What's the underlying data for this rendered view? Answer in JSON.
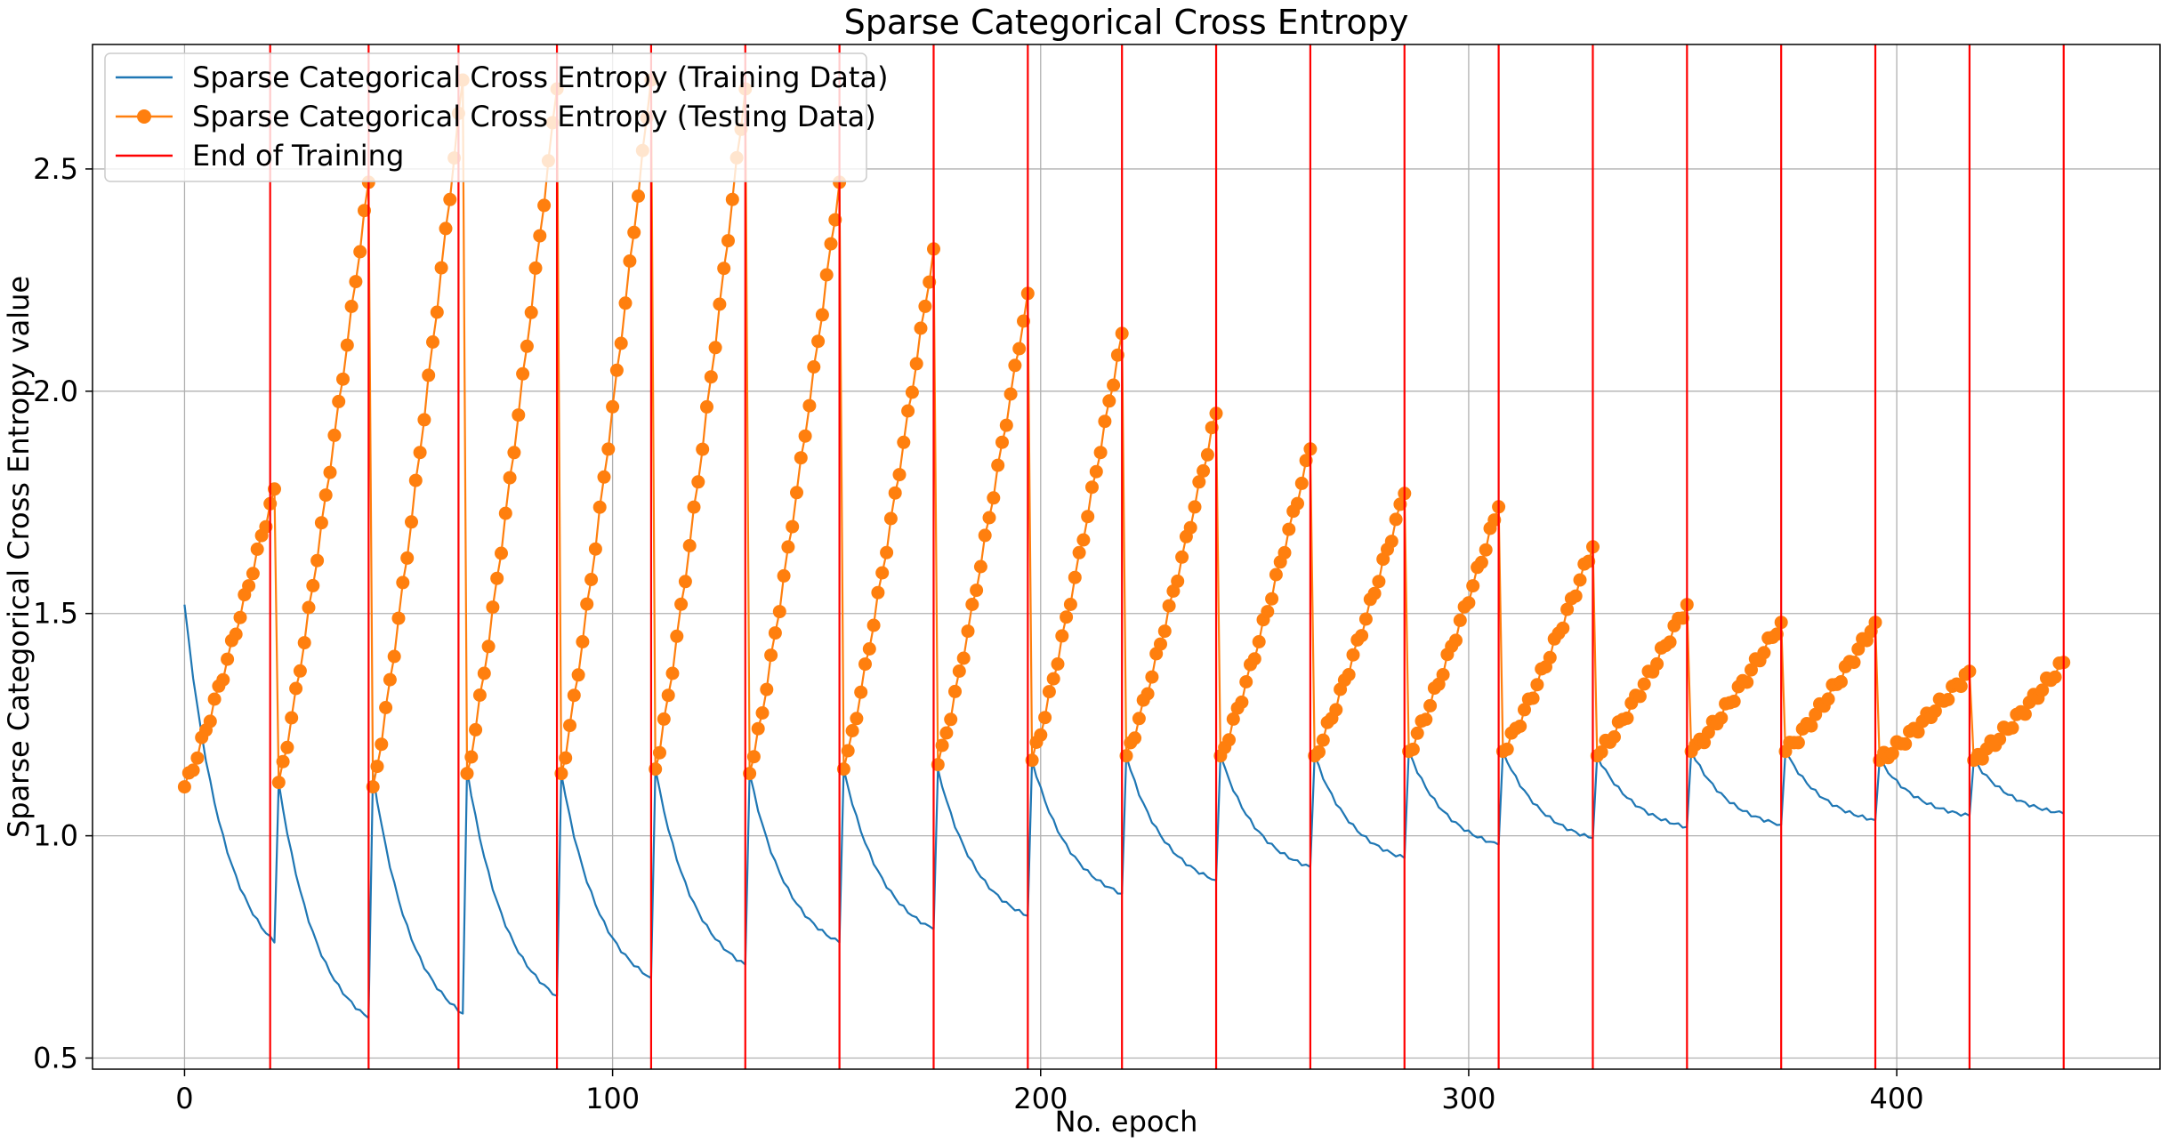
{
  "chart_data": {
    "type": "line",
    "title": "Sparse Categorical Cross Entropy",
    "xlabel": "No. epoch",
    "ylabel": "Sparse Categorical Cross Entropy value",
    "xlim": [
      -21.5,
      461.5
    ],
    "ylim": [
      0.475,
      2.78
    ],
    "xticks": [
      0,
      100,
      200,
      300,
      400
    ],
    "xtick_labels": [
      "0",
      "100",
      "200",
      "300",
      "400"
    ],
    "yticks": [
      0.5,
      1.0,
      1.5,
      2.0,
      2.5
    ],
    "ytick_labels": [
      "0.5",
      "1.0",
      "1.5",
      "2.0",
      "2.5"
    ],
    "grid": true,
    "legend_position": "top-left",
    "cycle_length": 22,
    "num_cycles": 20,
    "series": [
      {
        "name": "Sparse Categorical Cross Entropy (Training Data)",
        "color": "#1f77b4",
        "marker": "none",
        "cycles": [
          {
            "start": 1.52,
            "end": 0.76
          },
          {
            "start": 1.12,
            "end": 0.59
          },
          {
            "start": 1.14,
            "end": 0.6
          },
          {
            "start": 1.15,
            "end": 0.64
          },
          {
            "start": 1.14,
            "end": 0.68
          },
          {
            "start": 1.15,
            "end": 0.71
          },
          {
            "start": 1.14,
            "end": 0.76
          },
          {
            "start": 1.15,
            "end": 0.79
          },
          {
            "start": 1.15,
            "end": 0.82
          },
          {
            "start": 1.17,
            "end": 0.87
          },
          {
            "start": 1.18,
            "end": 0.9
          },
          {
            "start": 1.18,
            "end": 0.93
          },
          {
            "start": 1.18,
            "end": 0.95
          },
          {
            "start": 1.19,
            "end": 0.98
          },
          {
            "start": 1.19,
            "end": 0.995
          },
          {
            "start": 1.18,
            "end": 1.02
          },
          {
            "start": 1.19,
            "end": 1.025
          },
          {
            "start": 1.19,
            "end": 1.035
          },
          {
            "start": 1.17,
            "end": 1.045
          },
          {
            "start": 1.17,
            "end": 1.05
          }
        ]
      },
      {
        "name": "Sparse Categorical Cross Entropy (Testing Data)",
        "color": "#ff7f0e",
        "marker": "circle",
        "cycles": [
          {
            "start": 1.11,
            "end": 1.78
          },
          {
            "start": 1.12,
            "end": 2.47
          },
          {
            "start": 1.11,
            "end": 2.7
          },
          {
            "start": 1.14,
            "end": 2.68
          },
          {
            "start": 1.14,
            "end": 2.7
          },
          {
            "start": 1.15,
            "end": 2.68
          },
          {
            "start": 1.14,
            "end": 2.47
          },
          {
            "start": 1.15,
            "end": 2.32
          },
          {
            "start": 1.16,
            "end": 2.22
          },
          {
            "start": 1.17,
            "end": 2.13
          },
          {
            "start": 1.18,
            "end": 1.95
          },
          {
            "start": 1.18,
            "end": 1.87
          },
          {
            "start": 1.18,
            "end": 1.77
          },
          {
            "start": 1.19,
            "end": 1.74
          },
          {
            "start": 1.19,
            "end": 1.65
          },
          {
            "start": 1.18,
            "end": 1.52
          },
          {
            "start": 1.19,
            "end": 1.48
          },
          {
            "start": 1.19,
            "end": 1.48
          },
          {
            "start": 1.17,
            "end": 1.37
          },
          {
            "start": 1.17,
            "end": 1.39
          }
        ]
      },
      {
        "name": "End of Training",
        "color": "#ff0000",
        "type": "vline",
        "x": [
          20,
          43,
          64,
          87,
          109,
          131,
          153,
          175,
          197,
          219,
          241,
          263,
          285,
          307,
          329,
          351,
          373,
          395,
          417,
          439
        ]
      }
    ]
  }
}
